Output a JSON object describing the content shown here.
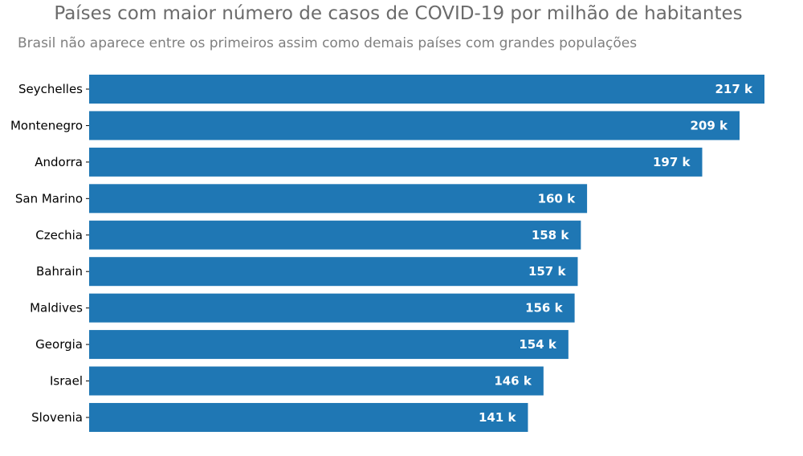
{
  "chart_data": {
    "type": "bar",
    "orientation": "horizontal",
    "title": "Países com maior número de casos de COVID-19 por milhão de habitantes",
    "subtitle": "Brasil não aparece entre os primeiros assim como demais países com grandes populações",
    "categories": [
      "Seychelles",
      "Montenegro",
      "Andorra",
      "San Marino",
      "Czechia",
      "Bahrain",
      "Maldives",
      "Georgia",
      "Israel",
      "Slovenia"
    ],
    "values": [
      217,
      209,
      197,
      160,
      158,
      157,
      156,
      154,
      146,
      141
    ],
    "value_labels": [
      "217 k",
      "209 k",
      "197 k",
      "160 k",
      "158 k",
      "157 k",
      "156 k",
      "154 k",
      "146 k",
      "141 k"
    ],
    "xlim": [
      0,
      217
    ],
    "grid": false,
    "bar_color": "#1f77b4",
    "title_color": "#6b6b6b",
    "subtitle_color": "#7f7f7f",
    "value_label_color": "#ffffff"
  }
}
